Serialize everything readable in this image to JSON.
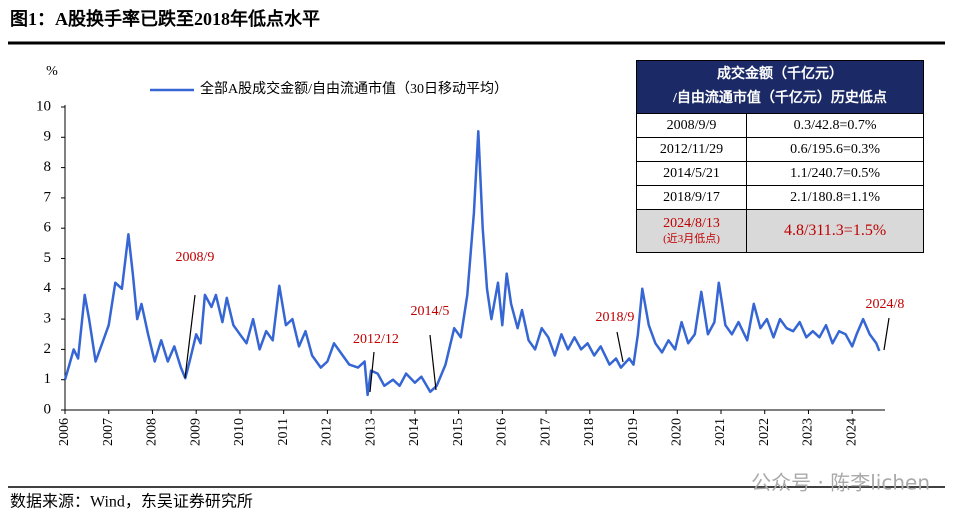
{
  "title": "图1：A股换手率已跌至2018年低点水平",
  "source": "数据来源：Wind，东吴证券研究所",
  "watermark": "公众号 · 陈李lichen",
  "chart_data": {
    "type": "line",
    "y_unit": "%",
    "x": [
      2006.0,
      2006.1,
      2006.2,
      2006.3,
      2006.45,
      2006.55,
      2006.7,
      2006.85,
      2007.0,
      2007.15,
      2007.3,
      2007.45,
      2007.55,
      2007.65,
      2007.75,
      2007.9,
      2008.05,
      2008.2,
      2008.35,
      2008.5,
      2008.65,
      2008.75,
      2008.85,
      2009.0,
      2009.1,
      2009.2,
      2009.35,
      2009.45,
      2009.6,
      2009.7,
      2009.85,
      2010.0,
      2010.15,
      2010.3,
      2010.45,
      2010.6,
      2010.75,
      2010.9,
      2011.05,
      2011.2,
      2011.35,
      2011.5,
      2011.65,
      2011.85,
      2012.0,
      2012.15,
      2012.3,
      2012.5,
      2012.7,
      2012.85,
      2012.92,
      2013.0,
      2013.15,
      2013.3,
      2013.5,
      2013.65,
      2013.8,
      2014.0,
      2014.15,
      2014.35,
      2014.5,
      2014.7,
      2014.9,
      2015.05,
      2015.2,
      2015.35,
      2015.45,
      2015.55,
      2015.65,
      2015.75,
      2015.9,
      2016.0,
      2016.1,
      2016.2,
      2016.35,
      2016.45,
      2016.6,
      2016.75,
      2016.9,
      2017.05,
      2017.2,
      2017.35,
      2017.5,
      2017.65,
      2017.8,
      2017.95,
      2018.1,
      2018.25,
      2018.45,
      2018.6,
      2018.71,
      2018.9,
      2019.0,
      2019.1,
      2019.2,
      2019.35,
      2019.5,
      2019.65,
      2019.8,
      2019.95,
      2020.1,
      2020.25,
      2020.4,
      2020.55,
      2020.7,
      2020.85,
      2020.95,
      2021.1,
      2021.25,
      2021.4,
      2021.6,
      2021.75,
      2021.9,
      2022.05,
      2022.2,
      2022.35,
      2022.5,
      2022.65,
      2022.8,
      2022.95,
      2023.1,
      2023.25,
      2023.4,
      2023.55,
      2023.7,
      2023.85,
      2024.0,
      2024.1,
      2024.25,
      2024.4,
      2024.55,
      2024.62
    ],
    "series": [
      {
        "name": "全部A股成交金额/自由流通市值（30日移动平均）",
        "color": "#3566d4",
        "values": [
          1.0,
          1.5,
          2.0,
          1.7,
          3.8,
          3.0,
          1.6,
          2.2,
          2.8,
          4.2,
          4.0,
          5.8,
          4.5,
          3.0,
          3.5,
          2.5,
          1.6,
          2.3,
          1.6,
          2.1,
          1.4,
          1.05,
          1.6,
          2.5,
          2.2,
          3.8,
          3.4,
          3.8,
          2.9,
          3.7,
          2.8,
          2.5,
          2.2,
          3.0,
          2.0,
          2.6,
          2.3,
          4.1,
          2.8,
          3.0,
          2.1,
          2.6,
          1.8,
          1.4,
          1.6,
          2.2,
          1.9,
          1.5,
          1.4,
          1.6,
          0.5,
          1.3,
          1.2,
          0.8,
          1.0,
          0.8,
          1.2,
          0.9,
          1.1,
          0.6,
          0.8,
          1.5,
          2.7,
          2.4,
          3.8,
          6.5,
          9.2,
          6.0,
          4.0,
          3.0,
          4.2,
          2.8,
          4.5,
          3.5,
          2.7,
          3.3,
          2.3,
          2.0,
          2.7,
          2.4,
          1.8,
          2.5,
          2.0,
          2.4,
          2.0,
          2.2,
          1.8,
          2.1,
          1.5,
          1.7,
          1.4,
          1.7,
          1.5,
          2.5,
          4.0,
          2.8,
          2.2,
          1.9,
          2.3,
          2.0,
          2.9,
          2.2,
          2.5,
          3.9,
          2.5,
          2.9,
          4.2,
          2.8,
          2.5,
          2.9,
          2.3,
          3.5,
          2.7,
          3.0,
          2.4,
          3.0,
          2.7,
          2.6,
          2.9,
          2.4,
          2.6,
          2.4,
          2.8,
          2.2,
          2.6,
          2.5,
          2.1,
          2.5,
          3.0,
          2.5,
          2.2,
          1.95
        ]
      }
    ],
    "xlim": [
      2006,
      2024.75
    ],
    "xticks": [
      2006,
      2007,
      2008,
      2009,
      2010,
      2011,
      2012,
      2013,
      2014,
      2015,
      2016,
      2017,
      2018,
      2019,
      2020,
      2021,
      2022,
      2023,
      2024
    ],
    "ylim": [
      0,
      10
    ],
    "yticks": [
      0,
      1,
      2,
      3,
      4,
      5,
      6,
      7,
      8,
      9,
      10
    ],
    "grid": false,
    "legend": "top-left",
    "annotations": [
      "2008/9",
      "2012/12",
      "2014/5",
      "2018/9",
      "2024/8"
    ]
  },
  "table": {
    "header": [
      "成交金额（千亿元）",
      "/自由流通市值（千亿元）历史低点"
    ],
    "rows": [
      [
        "2008/9/9",
        "0.3/42.8=0.7%"
      ],
      [
        "2012/11/29",
        "0.6/195.6=0.3%"
      ],
      [
        "2014/5/21",
        "1.1/240.7=0.5%"
      ],
      [
        "2018/9/17",
        "2.1/180.8=1.1%"
      ]
    ],
    "highlight": {
      "date": "2024/8/13",
      "note": "(近3月低点)",
      "value": "4.8/311.3=1.5%"
    }
  }
}
